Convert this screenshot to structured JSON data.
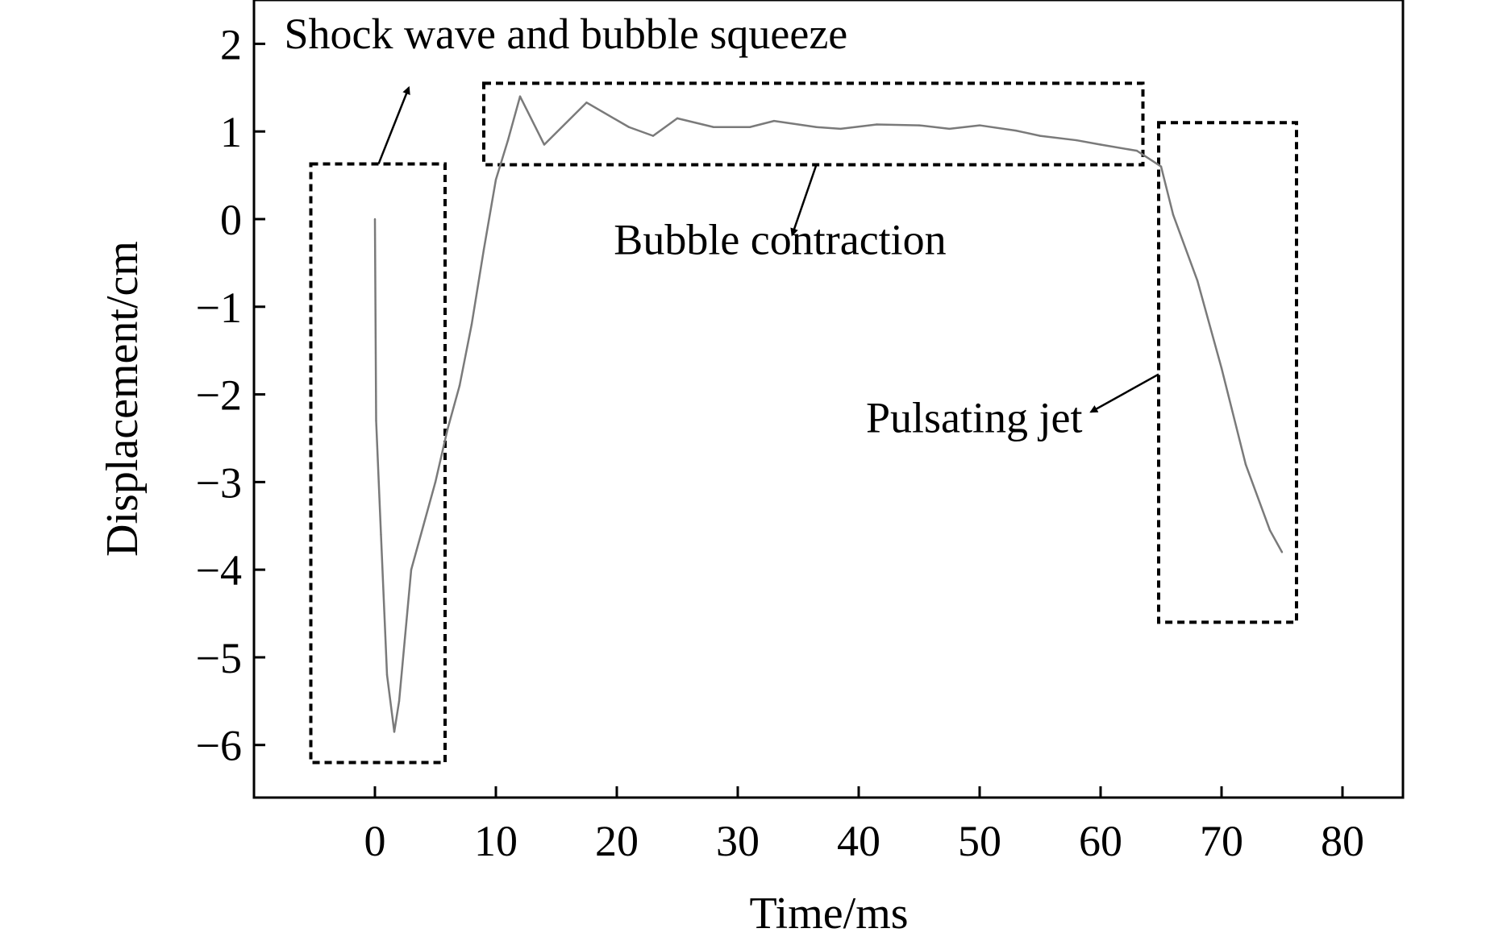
{
  "chart_data": {
    "type": "line",
    "title": "",
    "xlabel": "Time/ms",
    "ylabel": "Displacement/cm",
    "xlim": [
      -10,
      85
    ],
    "ylim": [
      -6.6,
      2.5
    ],
    "xticks": [
      0,
      10,
      20,
      30,
      40,
      50,
      60,
      70,
      80
    ],
    "yticks": [
      2,
      1,
      0,
      -1,
      -2,
      -3,
      -4,
      -5,
      -6
    ],
    "xtick_labels": [
      "0",
      "10",
      "20",
      "30",
      "40",
      "50",
      "60",
      "70",
      "80"
    ],
    "ytick_labels": [
      "2",
      "1",
      "0",
      "−1",
      "−2",
      "−3",
      "−4",
      "−5",
      "−6"
    ],
    "grid": false,
    "line_color": "#7a7a7a",
    "series": [
      {
        "name": "Displacement",
        "x": [
          0,
          0.1,
          0.5,
          1,
          1.6,
          2,
          3,
          4,
          5,
          6,
          7,
          8,
          9,
          10,
          11,
          12,
          14,
          17.5,
          21,
          23,
          25,
          28,
          31,
          33,
          36.5,
          38.5,
          41.5,
          45,
          47.5,
          50,
          53,
          55,
          58,
          60,
          63,
          65,
          66,
          68,
          70,
          72,
          74,
          75
        ],
        "y": [
          0,
          -2.3,
          -3.6,
          -5.2,
          -5.85,
          -5.5,
          -4.0,
          -3.5,
          -3.0,
          -2.4,
          -1.9,
          -1.2,
          -0.35,
          0.45,
          0.9,
          1.4,
          0.85,
          1.33,
          1.05,
          0.95,
          1.15,
          1.05,
          1.05,
          1.12,
          1.05,
          1.03,
          1.08,
          1.07,
          1.03,
          1.07,
          1.01,
          0.95,
          0.9,
          0.85,
          0.78,
          0.6,
          0.05,
          -0.7,
          -1.7,
          -2.8,
          -3.55,
          -3.8
        ]
      }
    ],
    "annotations": [
      {
        "label": "Shock wave and bubble squeeze",
        "box": {
          "x": [
            -5.3,
            5.8
          ],
          "y": [
            -6.2,
            0.63
          ]
        },
        "arrow_from": [
          0.3,
          0.63
        ],
        "arrow_to": [
          2.8,
          1.5
        ],
        "text_at": [
          -7.5,
          1.95
        ],
        "text_anchor": "start"
      },
      {
        "label": "Bubble contraction",
        "box": {
          "x": [
            9,
            63.5
          ],
          "y": [
            0.62,
            1.55
          ]
        },
        "arrow_from": [
          36.5,
          0.62
        ],
        "arrow_to": [
          34.5,
          -0.18
        ],
        "text_at": [
          33.5,
          -0.4
        ],
        "text_anchor": "middle"
      },
      {
        "label": "Pulsating jet",
        "box": {
          "x": [
            64.8,
            76.2
          ],
          "y": [
            -4.6,
            1.1
          ]
        },
        "arrow_from": [
          64.8,
          -1.77
        ],
        "arrow_to": [
          59.2,
          -2.2
        ],
        "text_at": [
          58.5,
          -2.43
        ],
        "text_anchor": "end"
      }
    ]
  }
}
